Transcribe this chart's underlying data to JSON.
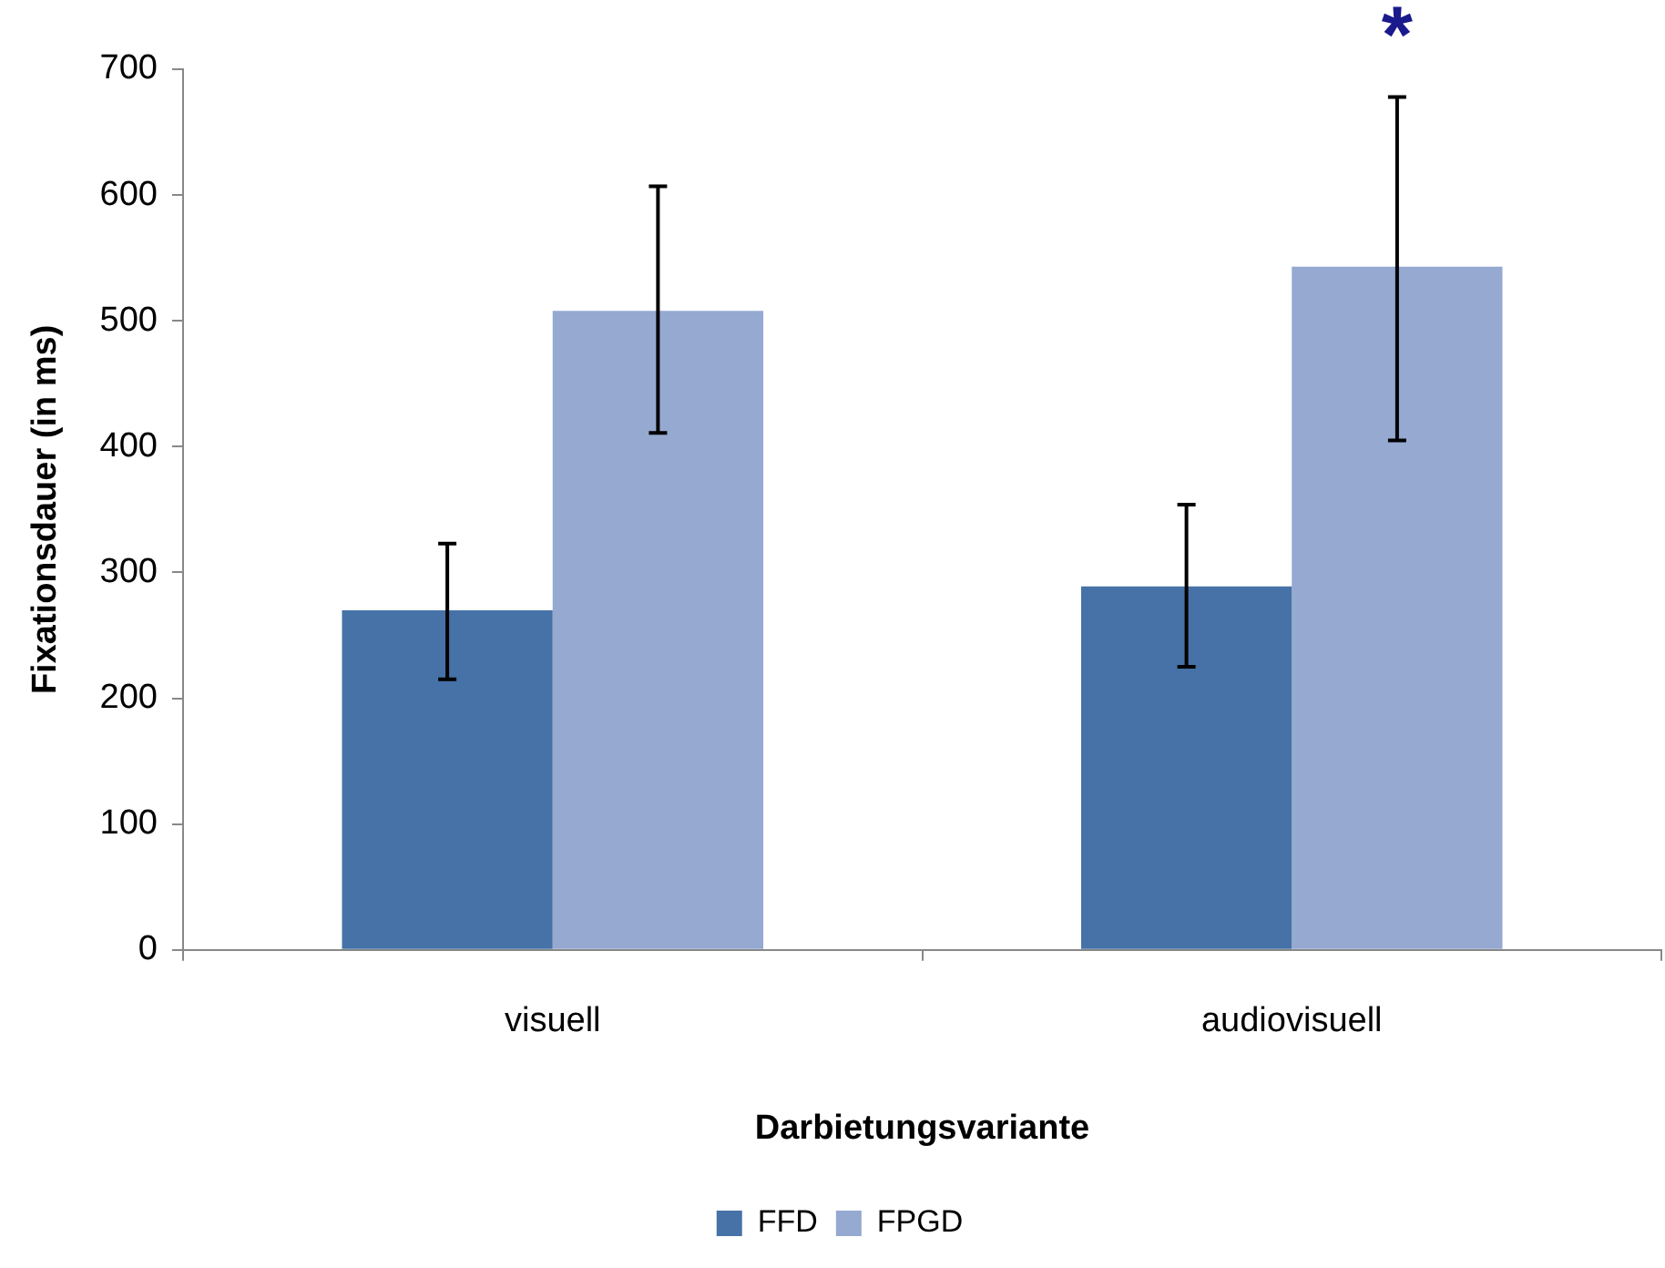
{
  "chart_data": {
    "type": "bar",
    "xlabel": "Darbietungsvariante",
    "ylabel": "Fixationsdauer (in ms)",
    "categories": [
      "visuell",
      "audiovisuell"
    ],
    "series": [
      {
        "name": "FFD",
        "color": "#4672a8",
        "values": [
          270,
          289
        ],
        "errors": [
          [
            215,
            323
          ],
          [
            225,
            354
          ]
        ]
      },
      {
        "name": "FPGD",
        "color": "#95a9d1",
        "values": [
          508,
          543
        ],
        "errors": [
          [
            411,
            607
          ],
          [
            405,
            678
          ]
        ]
      }
    ],
    "ylim": [
      0,
      700
    ],
    "yticks": [
      0,
      100,
      200,
      300,
      400,
      500,
      600,
      700
    ],
    "grid": false,
    "legend": "bottom",
    "annotations": [
      "*"
    ]
  }
}
